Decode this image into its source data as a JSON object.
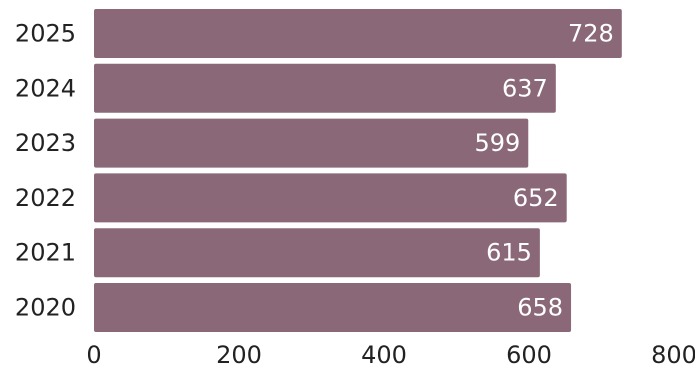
{
  "chart_data": {
    "type": "bar",
    "orientation": "horizontal",
    "categories": [
      "2025",
      "2024",
      "2023",
      "2022",
      "2021",
      "2020"
    ],
    "values": [
      728,
      637,
      599,
      652,
      615,
      658
    ],
    "xlim": [
      0,
      800
    ],
    "x_ticks": [
      "0",
      "200",
      "400",
      "600",
      "800"
    ],
    "grid": false,
    "legend": "none",
    "bar_color": "#8b6878",
    "value_label_color": "#ffffff",
    "title": "",
    "xlabel": "",
    "ylabel": ""
  }
}
